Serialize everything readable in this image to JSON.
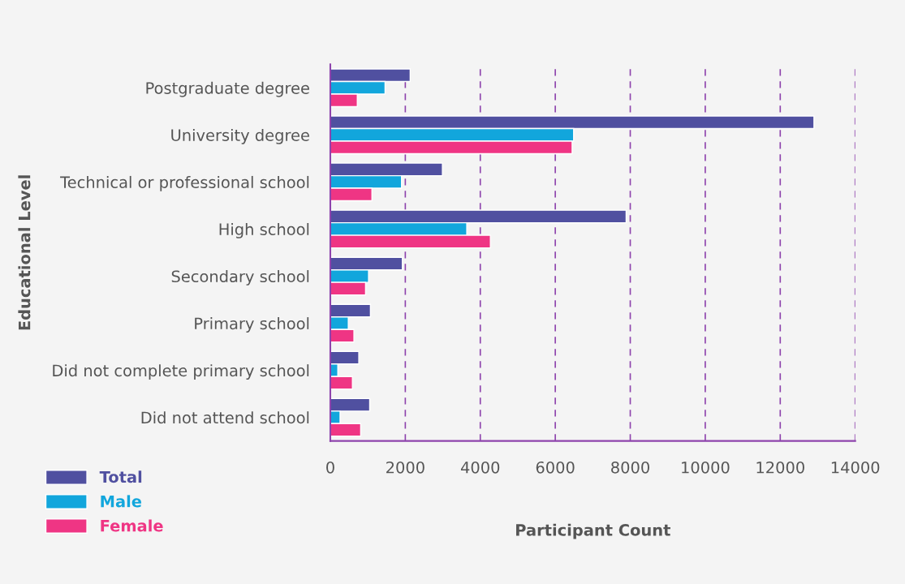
{
  "chart_data": {
    "type": "bar",
    "orientation": "horizontal",
    "xlabel": "Participant Count",
    "ylabel": "Educational Level",
    "categories": [
      "Postgraduate degree",
      "University degree",
      "Technical or professional school",
      "High school",
      "Secondary school",
      "Primary school",
      "Did not complete primary school",
      "Did not attend school"
    ],
    "series": [
      {
        "name": "Total",
        "color": "#5050a0",
        "values": [
          2130,
          12900,
          2990,
          7890,
          1920,
          1070,
          760,
          1050
        ]
      },
      {
        "name": "Male",
        "color": "#12a6dc",
        "values": [
          1460,
          6490,
          1900,
          3640,
          1020,
          480,
          200,
          260
        ]
      },
      {
        "name": "Female",
        "color": "#ef3584",
        "values": [
          720,
          6450,
          1110,
          4270,
          940,
          630,
          590,
          810
        ]
      }
    ],
    "xlim": [
      0,
      14000
    ],
    "xticks": [
      0,
      2000,
      4000,
      6000,
      8000,
      10000,
      12000,
      14000
    ],
    "grid": "x",
    "legend": "bottom left"
  }
}
